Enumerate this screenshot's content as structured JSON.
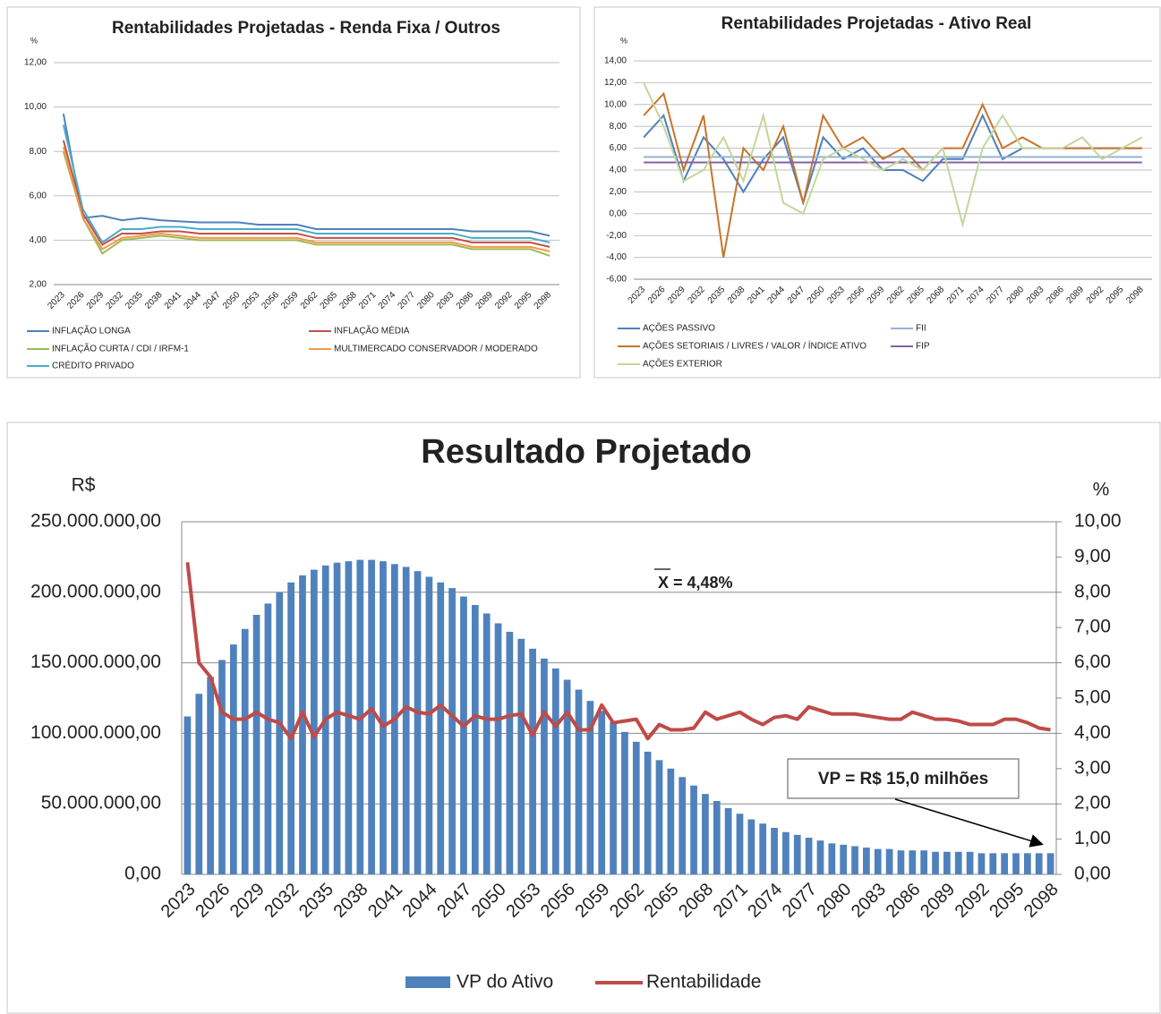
{
  "chart_data": [
    {
      "type": "line",
      "title": "Rentabilidades Projetadas - Renda Fixa / Outros",
      "y_label": "%",
      "categories": [
        "2023",
        "2026",
        "2029",
        "2032",
        "2035",
        "2038",
        "2041",
        "2044",
        "2047",
        "2050",
        "2053",
        "2056",
        "2059",
        "2062",
        "2065",
        "2068",
        "2071",
        "2074",
        "2077",
        "2080",
        "2083",
        "2086",
        "2089",
        "2092",
        "2095",
        "2098"
      ],
      "series": [
        {
          "name": "INFLAÇÃO LONGA",
          "color": "#4f81bd",
          "values": [
            9.7,
            5.0,
            5.1,
            4.9,
            5.0,
            4.9,
            4.85,
            4.8,
            4.8,
            4.8,
            4.7,
            4.7,
            4.7,
            4.5,
            4.5,
            4.5,
            4.5,
            4.5,
            4.5,
            4.5,
            4.5,
            4.4,
            4.4,
            4.4,
            4.4,
            4.2
          ]
        },
        {
          "name": "INFLAÇÃO MÉDIA",
          "color": "#c0504d",
          "values": [
            8.5,
            5.2,
            3.8,
            4.3,
            4.3,
            4.4,
            4.4,
            4.3,
            4.3,
            4.3,
            4.3,
            4.3,
            4.3,
            4.1,
            4.1,
            4.1,
            4.1,
            4.1,
            4.1,
            4.1,
            4.1,
            3.9,
            3.9,
            3.9,
            3.9,
            3.7
          ]
        },
        {
          "name": "INFLAÇÃO CURTA / CDI / IRFM-1",
          "color": "#9bbb59",
          "values": [
            8.0,
            5.0,
            3.4,
            4.0,
            4.1,
            4.2,
            4.1,
            4.0,
            4.0,
            4.0,
            4.0,
            4.0,
            4.0,
            3.8,
            3.8,
            3.8,
            3.8,
            3.8,
            3.8,
            3.8,
            3.8,
            3.6,
            3.6,
            3.6,
            3.6,
            3.3
          ]
        },
        {
          "name": "MULTIMERCADO CONSERVADOR / MODERADO",
          "color": "#f79646",
          "values": [
            8.2,
            5.0,
            3.6,
            4.1,
            4.2,
            4.3,
            4.2,
            4.1,
            4.1,
            4.1,
            4.1,
            4.1,
            4.1,
            3.9,
            3.9,
            3.9,
            3.9,
            3.9,
            3.9,
            3.9,
            3.9,
            3.7,
            3.7,
            3.7,
            3.7,
            3.5
          ]
        },
        {
          "name": "CRÉDITO PRIVADO",
          "color": "#4bacc6",
          "values": [
            9.2,
            5.4,
            3.9,
            4.5,
            4.5,
            4.6,
            4.6,
            4.5,
            4.5,
            4.5,
            4.5,
            4.5,
            4.5,
            4.3,
            4.3,
            4.3,
            4.3,
            4.3,
            4.3,
            4.3,
            4.3,
            4.1,
            4.1,
            4.1,
            4.1,
            3.9
          ]
        }
      ],
      "ylim": [
        2,
        12
      ],
      "yticks": [
        {
          "value": 2,
          "label": "2,00"
        },
        {
          "value": 4,
          "label": "4,00"
        },
        {
          "value": 6,
          "label": "6,00"
        },
        {
          "value": 8,
          "label": "8,00"
        },
        {
          "value": 10,
          "label": "10,00"
        },
        {
          "value": 12,
          "label": "12,00"
        }
      ],
      "grid": true
    },
    {
      "type": "line",
      "title": "Rentabilidades Projetadas - Ativo Real",
      "y_label": "%",
      "categories": [
        "2023",
        "2026",
        "2029",
        "2032",
        "2035",
        "2038",
        "2041",
        "2044",
        "2047",
        "2050",
        "2053",
        "2056",
        "2059",
        "2062",
        "2065",
        "2068",
        "2071",
        "2074",
        "2077",
        "2080",
        "2083",
        "2086",
        "2089",
        "2092",
        "2095",
        "2098"
      ],
      "series": [
        {
          "name": "AÇÕES PASSIVO",
          "color": "#4f81bd",
          "values": [
            7,
            9,
            3,
            7,
            5,
            2,
            5,
            7,
            1,
            7,
            5,
            6,
            4,
            4,
            3,
            5,
            5,
            9,
            5,
            6,
            6,
            6,
            6,
            6,
            6,
            6
          ]
        },
        {
          "name": "FII",
          "color": "#95b3d7",
          "values": [
            5.2,
            5.2,
            5.2,
            5.2,
            5.2,
            5.2,
            5.2,
            5.2,
            5.2,
            5.2,
            5.2,
            5.2,
            5.2,
            5.2,
            5.2,
            5.2,
            5.2,
            5.2,
            5.2,
            5.2,
            5.2,
            5.2,
            5.2,
            5.2,
            5.2,
            5.2
          ]
        },
        {
          "name": "AÇÕES SETORIAIS / LIVRES / VALOR / ÍNDICE ATIVO",
          "color": "#c8742a",
          "values": [
            9,
            11,
            4,
            9,
            -4,
            6,
            4,
            8,
            1,
            9,
            6,
            7,
            5,
            6,
            4,
            6,
            6,
            10,
            6,
            7,
            6,
            6,
            6,
            6,
            6,
            6
          ]
        },
        {
          "name": "FIP",
          "color": "#8064a2",
          "values": [
            4.7,
            4.7,
            4.7,
            4.7,
            4.7,
            4.7,
            4.7,
            4.7,
            4.7,
            4.7,
            4.7,
            4.7,
            4.7,
            4.7,
            4.7,
            4.7,
            4.7,
            4.7,
            4.7,
            4.7,
            4.7,
            4.7,
            4.7,
            4.7,
            4.7,
            4.7
          ]
        },
        {
          "name": "AÇÕES EXTERIOR",
          "color": "#c3d69b",
          "values": [
            12,
            8,
            3,
            4,
            7,
            3,
            9,
            1,
            0,
            5,
            6,
            5,
            4,
            5,
            4,
            6,
            -1,
            6,
            9,
            6,
            6,
            6,
            7,
            5,
            6,
            7
          ]
        }
      ],
      "ylim": [
        -6,
        14
      ],
      "yticks": [
        {
          "value": -6,
          "label": "-6,00"
        },
        {
          "value": -4,
          "label": "-4,00"
        },
        {
          "value": -2,
          "label": "-2,00"
        },
        {
          "value": 0,
          "label": "0,00"
        },
        {
          "value": 2,
          "label": "2,00"
        },
        {
          "value": 4,
          "label": "4,00"
        },
        {
          "value": 6,
          "label": "6,00"
        },
        {
          "value": 8,
          "label": "8,00"
        },
        {
          "value": 10,
          "label": "10,00"
        },
        {
          "value": 12,
          "label": "12,00"
        },
        {
          "value": 14,
          "label": "14,00"
        }
      ],
      "grid": true
    },
    {
      "type": "bar-line",
      "title": "Resultado Projetado",
      "y_label": "R$",
      "y2_label": "%",
      "categories": [
        "2023",
        null,
        null,
        "2026",
        null,
        null,
        "2029",
        null,
        null,
        "2032",
        null,
        null,
        "2035",
        null,
        null,
        "2038",
        null,
        null,
        "2041",
        null,
        null,
        "2044",
        null,
        null,
        "2047",
        null,
        null,
        "2050",
        null,
        null,
        "2053",
        null,
        null,
        "2056",
        null,
        null,
        "2059",
        null,
        null,
        "2062",
        null,
        null,
        "2065",
        null,
        null,
        "2068",
        null,
        null,
        "2071",
        null,
        null,
        "2074",
        null,
        null,
        "2077",
        null,
        null,
        "2080",
        null,
        null,
        "2083",
        null,
        null,
        "2086",
        null,
        null,
        "2089",
        null,
        null,
        "2092",
        null,
        null,
        "2095",
        null,
        null,
        "2098"
      ],
      "series": [
        {
          "name": "VP do Ativo",
          "type": "bar",
          "color": "#4f81bd",
          "values": [
            112000000,
            128000000,
            140000000,
            152000000,
            163000000,
            174000000,
            184000000,
            192000000,
            200000000,
            207000000,
            212000000,
            216000000,
            219000000,
            221000000,
            222000000,
            223000000,
            223000000,
            222000000,
            220000000,
            218000000,
            215000000,
            211000000,
            207000000,
            203000000,
            197000000,
            191000000,
            185000000,
            178000000,
            172000000,
            167000000,
            160000000,
            153000000,
            146000000,
            138000000,
            131000000,
            123000000,
            116000000,
            108000000,
            101000000,
            94000000,
            87000000,
            81000000,
            75000000,
            69000000,
            63000000,
            57000000,
            52000000,
            47000000,
            43000000,
            39000000,
            36000000,
            33000000,
            30000000,
            28000000,
            26000000,
            24000000,
            22000000,
            21000000,
            20000000,
            19000000,
            18000000,
            18000000,
            17000000,
            17000000,
            17000000,
            16000000,
            16000000,
            16000000,
            16000000,
            15000000,
            15000000,
            15000000,
            15000000,
            15000000,
            15000000,
            15000000
          ]
        },
        {
          "name": "Rentabilidade",
          "type": "line",
          "axis": "y2",
          "color": "#be4b48",
          "values": [
            8.85,
            6.0,
            5.6,
            4.6,
            4.4,
            4.4,
            4.6,
            4.4,
            4.3,
            3.85,
            4.6,
            3.9,
            4.4,
            4.6,
            4.5,
            4.4,
            4.7,
            4.2,
            4.4,
            4.75,
            4.6,
            4.55,
            4.8,
            4.5,
            4.2,
            4.5,
            4.4,
            4.4,
            4.5,
            4.55,
            3.95,
            4.6,
            4.2,
            4.6,
            4.1,
            4.1,
            4.8,
            4.3,
            4.35,
            4.4,
            3.85,
            4.25,
            4.1,
            4.1,
            4.15,
            4.6,
            4.4,
            4.5,
            4.6,
            4.4,
            4.25,
            4.45,
            4.5,
            4.4,
            4.75,
            4.65,
            4.55,
            4.55,
            4.55,
            4.5,
            4.45,
            4.4,
            4.4,
            4.6,
            4.5,
            4.4,
            4.4,
            4.35,
            4.25,
            4.25,
            4.25,
            4.4,
            4.4,
            4.3,
            4.15,
            4.1
          ]
        }
      ],
      "ylim": [
        0,
        250000000
      ],
      "yticks": [
        {
          "value": 0,
          "label": "0,00"
        },
        {
          "value": 50000000,
          "label": "50.000.000,00"
        },
        {
          "value": 100000000,
          "label": "100.000.000,00"
        },
        {
          "value": 150000000,
          "label": "150.000.000,00"
        },
        {
          "value": 200000000,
          "label": "200.000.000,00"
        },
        {
          "value": 250000000,
          "label": "250.000.000,00"
        }
      ],
      "y2lim": [
        0,
        10
      ],
      "y2ticks": [
        {
          "value": 0,
          "label": "0,00"
        },
        {
          "value": 1,
          "label": "1,00"
        },
        {
          "value": 2,
          "label": "2,00"
        },
        {
          "value": 3,
          "label": "3,00"
        },
        {
          "value": 4,
          "label": "4,00"
        },
        {
          "value": 5,
          "label": "5,00"
        },
        {
          "value": 6,
          "label": "6,00"
        },
        {
          "value": 7,
          "label": "7,00"
        },
        {
          "value": 8,
          "label": "8,00"
        },
        {
          "value": 9,
          "label": "9,00"
        },
        {
          "value": 10,
          "label": "10,00"
        }
      ],
      "grid": true,
      "annotations": [
        "X = 4,48%",
        "VP = R$ 15,0 milhões"
      ]
    }
  ]
}
